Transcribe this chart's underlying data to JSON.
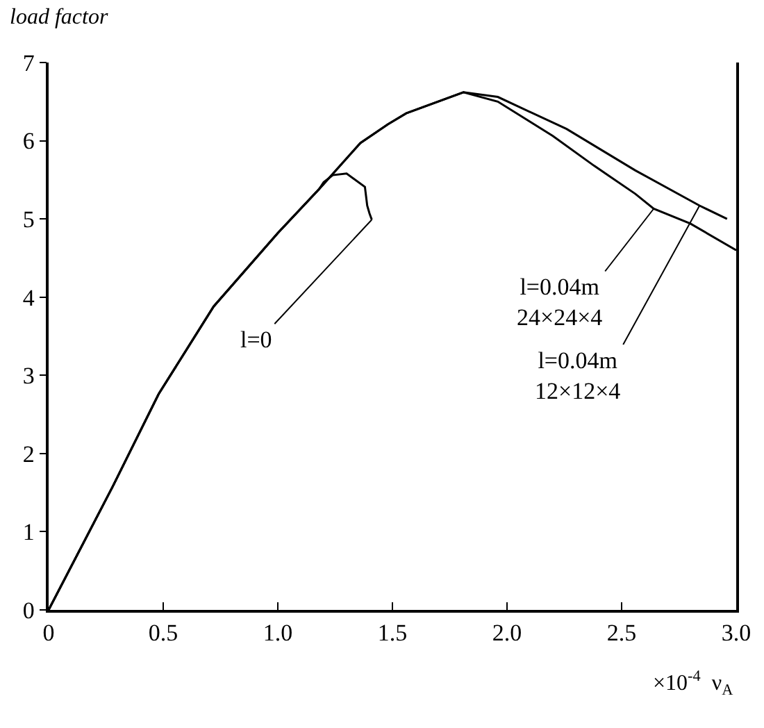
{
  "chart_data": {
    "type": "line",
    "ylabel": "load factor",
    "xlabel": "×10$^{-4}$  ν$_{A}$",
    "xlim": [
      0,
      3.0
    ],
    "ylim": [
      0,
      7
    ],
    "xticks": [
      0,
      {
        "value": 0.5,
        "label": "0.5"
      },
      {
        "value": 1,
        "label": "1.0"
      },
      {
        "value": 1.5,
        "label": "1.5"
      },
      {
        "value": 2,
        "label": "2.0"
      },
      {
        "value": 2.5,
        "label": "2.5"
      },
      {
        "value": 3,
        "label": "3.0"
      }
    ],
    "yticks": [
      0,
      1,
      2,
      3,
      4,
      5,
      6,
      7
    ],
    "marker": "none",
    "line_style": "solid",
    "series": [
      {
        "color": "#000000",
        "x": [
          0,
          0.28,
          0.48,
          0.72,
          1.0,
          1.18,
          1.2,
          1.24,
          1.3,
          1.38,
          1.39,
          1.4,
          1.41
        ],
        "values": [
          0,
          1.58,
          2.76,
          3.88,
          4.82,
          5.38,
          5.47,
          5.56,
          5.58,
          5.41,
          5.17,
          5.07,
          4.99
        ]
      },
      {
        "color": "#000000",
        "x": [
          0,
          0.28,
          0.48,
          0.72,
          1.0,
          1.18,
          1.36,
          1.48,
          1.56,
          1.81,
          1.96,
          2.2,
          2.38,
          2.56,
          2.64,
          2.8,
          3.0
        ],
        "values": [
          0,
          1.58,
          2.76,
          3.88,
          4.82,
          5.38,
          5.97,
          6.21,
          6.35,
          6.62,
          6.5,
          6.06,
          5.68,
          5.32,
          5.13,
          4.94,
          4.6
        ]
      },
      {
        "color": "#000000",
        "x": [
          0,
          0.28,
          0.48,
          0.72,
          1.0,
          1.18,
          1.36,
          1.48,
          1.56,
          1.81,
          1.96,
          2.26,
          2.56,
          2.84,
          2.96
        ],
        "values": [
          0,
          1.58,
          2.76,
          3.88,
          4.82,
          5.38,
          5.97,
          6.21,
          6.35,
          6.62,
          6.56,
          6.15,
          5.62,
          5.17,
          5.0
        ]
      }
    ],
    "annotations": [
      {
        "text": "l=0",
        "x": 1.41,
        "y": 4.99
      },
      {
        "text": "l=0.04m\n24×24×4",
        "x": 2.64,
        "y": 5.13
      },
      {
        "text": "l=0.04m\n12×12×4",
        "x": 2.84,
        "y": 5.17
      }
    ]
  }
}
